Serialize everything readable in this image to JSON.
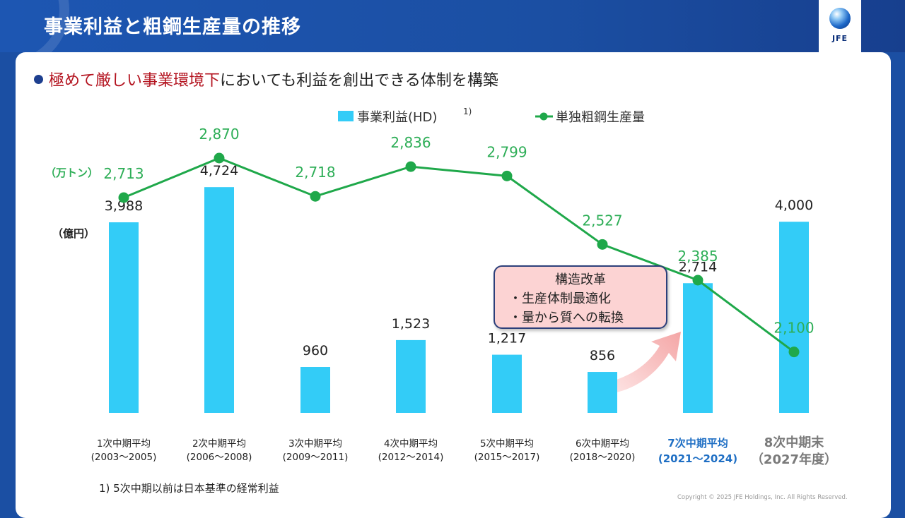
{
  "page": {
    "title": "事業利益と粗鋼生産量の推移",
    "headline_red": "極めて厳しい事業環境下",
    "headline_rest": "においても利益を創出できる体制を構築",
    "logo_text": "JFE",
    "footnote": "1) 5次中期以前は日本基準の経常利益",
    "copyright": "Copyright © 2025 JFE Holdings, Inc. All Rights Reserved.",
    "callout": {
      "title": "構造改革",
      "items": [
        "・生産体制最適化",
        "・量から質への転換"
      ]
    }
  },
  "chart_data": {
    "type": "bar",
    "categories": [
      [
        "1次中期平均",
        "(2003～2005)"
      ],
      [
        "2次中期平均",
        "(2006～2008)"
      ],
      [
        "3次中期平均",
        "(2009～2011)"
      ],
      [
        "4次中期平均",
        "(2012～2014)"
      ],
      [
        "5次中期平均",
        "(2015～2017)"
      ],
      [
        "6次中期平均",
        "(2018～2020)"
      ],
      [
        "7次中期平均",
        "(2021～2024)"
      ],
      [
        "8次中期末",
        "（2027年度）"
      ]
    ],
    "category_colors": [
      "#222222",
      "#222222",
      "#222222",
      "#222222",
      "#222222",
      "#222222",
      "#1f6fc4",
      "#7a7a7a"
    ],
    "series": [
      {
        "name": "事業利益(HD)",
        "superscript": "1)",
        "type": "bar",
        "unit_label": "（億円）",
        "color": "#33ccf7",
        "values": [
          3988,
          4724,
          960,
          1523,
          1217,
          856,
          2714,
          4000
        ],
        "labels": [
          "3,988",
          "4,724",
          "960",
          "1,523",
          "1,217",
          "856",
          "2,714",
          "4,000"
        ],
        "ylim": [
          0,
          5200
        ]
      },
      {
        "name": "単独粗鋼生産量",
        "type": "line",
        "unit_label": "（万トン）",
        "color": "#1fa84a",
        "label_color": "#2eae57",
        "values": [
          2713,
          2870,
          2718,
          2836,
          2799,
          2527,
          2385,
          2100
        ],
        "labels": [
          "2,713",
          "2,870",
          "2,718",
          "2,836",
          "2,799",
          "2,527",
          "2,385",
          "2,100"
        ],
        "ylim": [
          1400,
          3000
        ]
      }
    ],
    "legend_position": "top-center",
    "grid": false
  }
}
